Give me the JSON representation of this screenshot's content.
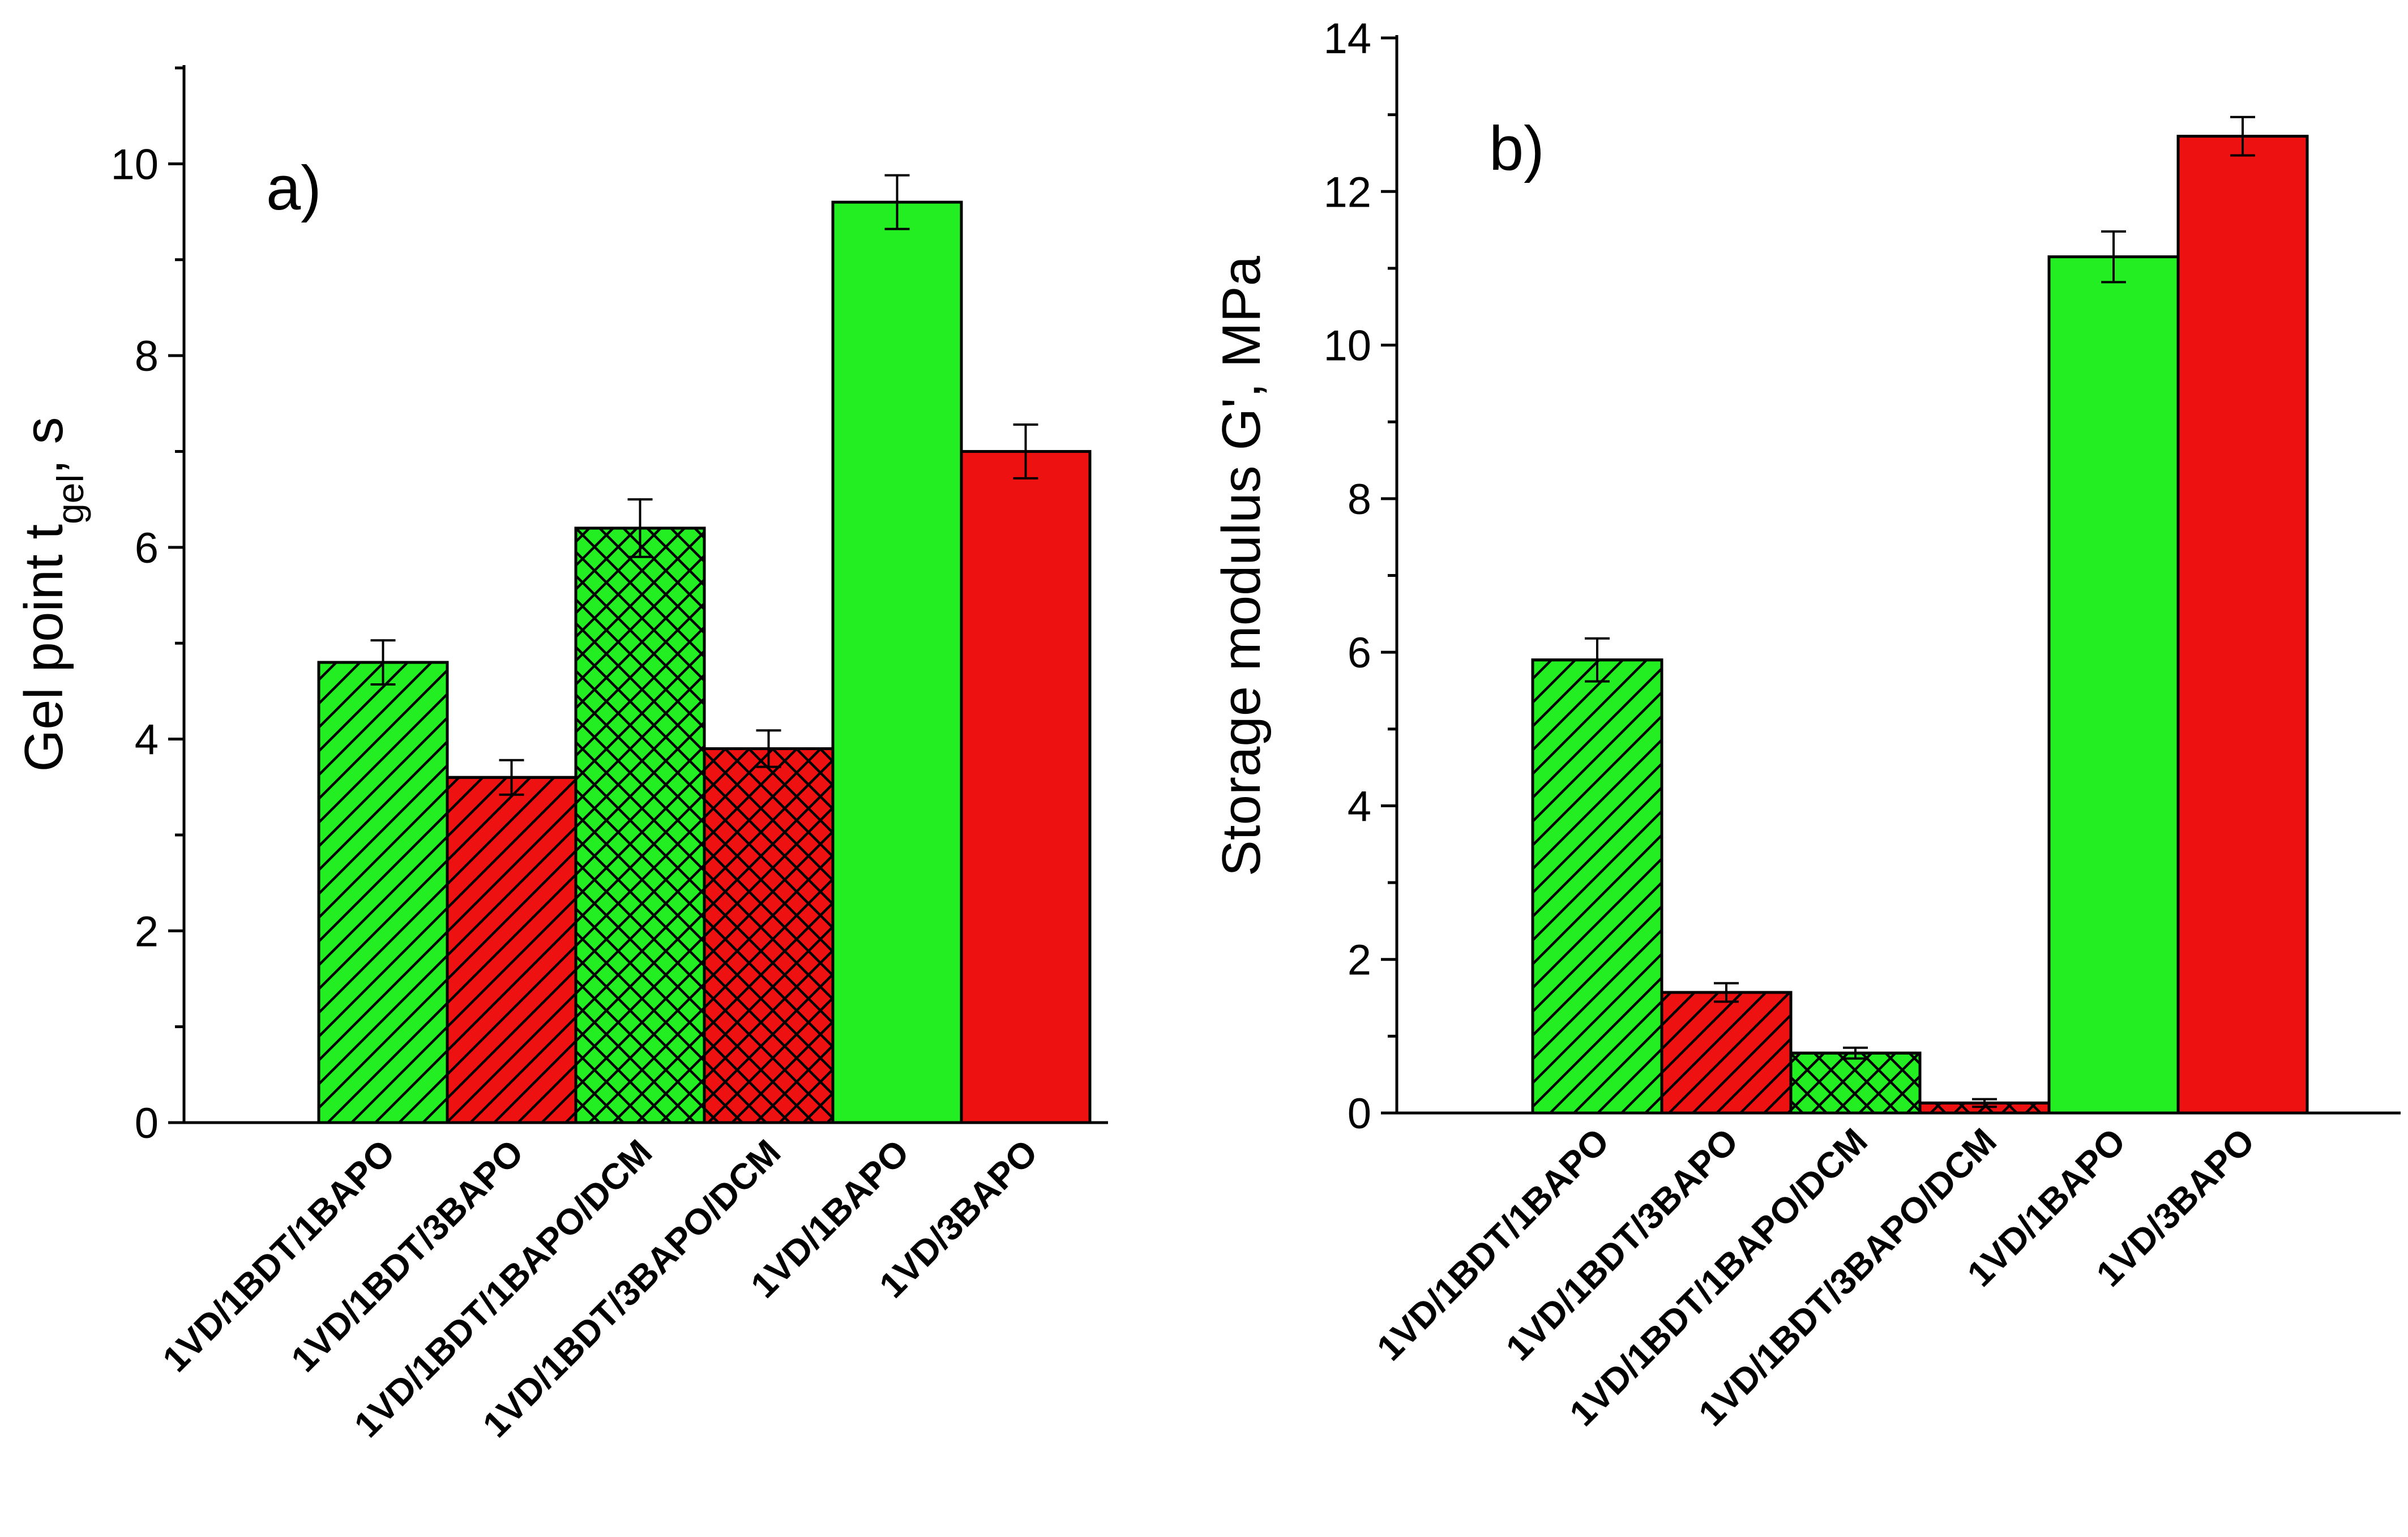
{
  "chart_data": [
    {
      "type": "bar",
      "panel_label": "a)",
      "ylabel": "Gel point t",
      "ylabel_subscript": "gel",
      "ylabel_suffix": ", s",
      "ylim": [
        0,
        11
      ],
      "yticks": [
        0,
        2,
        4,
        6,
        8,
        10
      ],
      "tick_labels": [
        "0",
        "2",
        "4",
        "6",
        "8",
        "10"
      ],
      "categories": [
        "1VD/1BDT/1BAPO",
        "1VD/1BDT/3BAPO",
        "1VD/1BDT/1BAPO/DCM",
        "1VD/1BDT/3BAPO/DCM",
        "1VD/1BAPO",
        "1VD/3BAPO"
      ],
      "values": [
        4.8,
        3.6,
        6.2,
        3.9,
        9.6,
        7.0
      ],
      "errors": [
        0.23,
        0.18,
        0.3,
        0.19,
        0.28,
        0.28
      ],
      "colors": [
        "#22ee22",
        "#ee1111",
        "#22ee22",
        "#ee1111",
        "#22ee22",
        "#ee1111"
      ],
      "patterns": [
        "diagonal",
        "diagonal",
        "crosshatch",
        "crosshatch",
        "none",
        "none"
      ]
    },
    {
      "type": "bar",
      "panel_label": "b)",
      "ylabel": "Storage modulus G', MPa",
      "ylim": [
        0,
        14
      ],
      "yticks": [
        0,
        2,
        4,
        6,
        8,
        10,
        12,
        14
      ],
      "tick_labels": [
        "0",
        "2",
        "4",
        "6",
        "8",
        "10",
        "12",
        "14"
      ],
      "categories": [
        "1VD/1BDT/1BAPO",
        "1VD/1BDT/3BAPO",
        "1VD/1BDT/1BAPO/DCM",
        "1VD/1BDT/3BAPO/DCM",
        "1VD/1BAPO",
        "1VD/3BAPO"
      ],
      "values": [
        5.9,
        1.57,
        0.78,
        0.13,
        11.15,
        12.72
      ],
      "errors": [
        0.28,
        0.12,
        0.07,
        0.05,
        0.33,
        0.25
      ],
      "colors": [
        "#22ee22",
        "#ee1111",
        "#22ee22",
        "#ee1111",
        "#22ee22",
        "#ee1111"
      ],
      "patterns": [
        "diagonal",
        "diagonal",
        "crosshatch",
        "crosshatch",
        "none",
        "none"
      ]
    }
  ]
}
